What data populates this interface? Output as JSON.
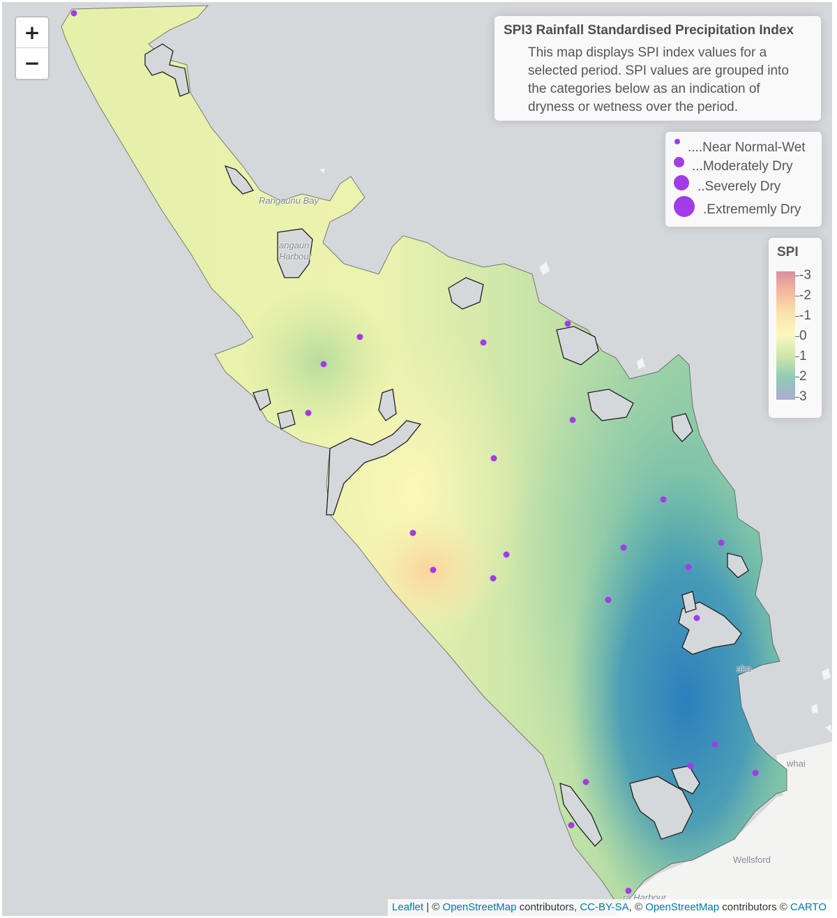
{
  "zoom": {
    "zoom_in": "+",
    "zoom_out": "−"
  },
  "info": {
    "title": "SPI3 Rainfall Standardised Precipitation Index",
    "description": "This map displays SPI index values for a selected period. SPI values are grouped into the categories below as an indication of dryness or wetness over the period."
  },
  "size_legend": [
    {
      "label": "....Near Normal-Wet"
    },
    {
      "label": "...Moderately Dry"
    },
    {
      "label": "..Severely Dry"
    },
    {
      "label": ".Extrememly Dry"
    }
  ],
  "spi_legend": {
    "title": "SPI",
    "ticks": [
      "-3",
      "-2",
      "-1",
      "0",
      "1",
      "2",
      "3"
    ],
    "colors": [
      "#da8a9b",
      "#f4b89a",
      "#fbe2a8",
      "#fbf8bc",
      "#c9e3a5",
      "#8ac7b4",
      "#aaa7d2"
    ]
  },
  "map_labels": {
    "rangaunu_bay": "Rangaunu Bay",
    "rangaunu_harbour_1": "angaun",
    "rangaunu_harbour_2": "Harbour",
    "kaipara_harbour": "ra Harbour",
    "wellsford": "Wellsford",
    "mangawhai": "whai",
    "kaka": "aka"
  },
  "attribution": {
    "leaflet": "Leaflet",
    "sep1": " | © ",
    "osm1": "OpenStreetMap",
    "text1": " contributors, ",
    "ccbysa": "CC-BY-SA",
    "sep2": ", © ",
    "osm2": "OpenStreetMap",
    "text2": " contributors © ",
    "carto": "CARTO"
  },
  "colors": {
    "station": "#a23ce6",
    "sea": "#d5d8db",
    "land": "#f4f4f2",
    "coast": "#2a2a2a"
  }
}
